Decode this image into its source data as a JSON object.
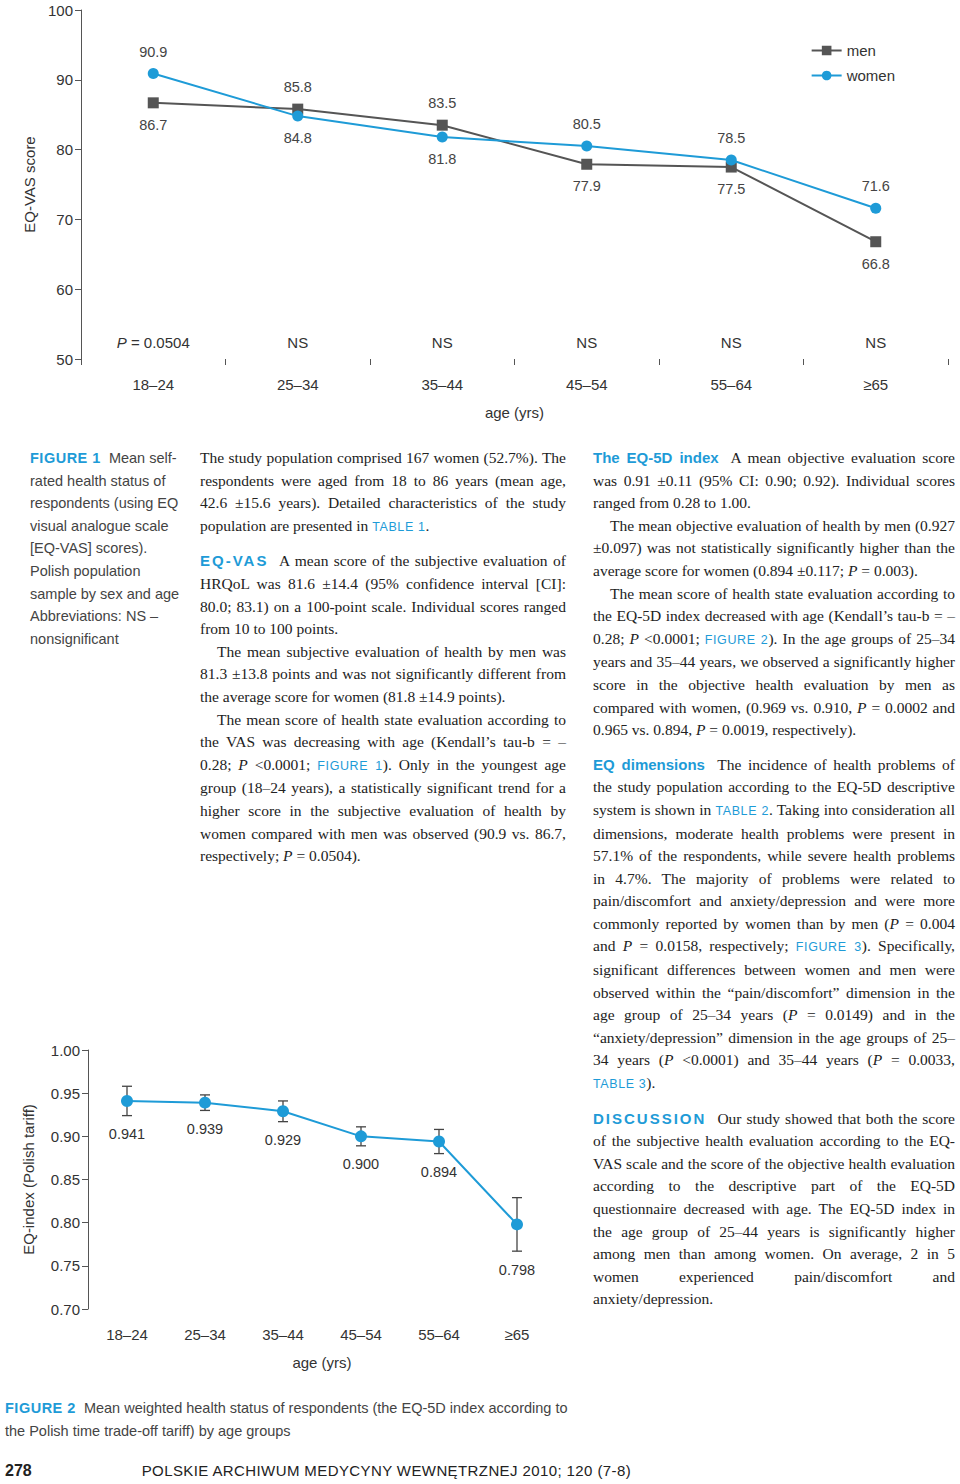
{
  "chart_data": [
    {
      "type": "line",
      "x_label": "age (yrs)",
      "y_label": "EQ-VAS score",
      "categories": [
        "18–24",
        "25–34",
        "35–44",
        "45–54",
        "55–64",
        "≥65"
      ],
      "series": [
        {
          "name": "men",
          "color": "#555555",
          "marker": "square",
          "values": [
            86.7,
            85.8,
            83.5,
            77.9,
            77.5,
            66.8
          ]
        },
        {
          "name": "women",
          "color": "#1e9bd7",
          "marker": "circle",
          "values": [
            90.9,
            84.8,
            81.8,
            80.5,
            78.5,
            71.6
          ]
        }
      ],
      "ylim": [
        50,
        100
      ],
      "yticks": [
        50,
        60,
        70,
        80,
        90,
        100
      ],
      "grid": false,
      "legend": "upper right",
      "data_labels": true,
      "annotations": [
        "P = 0.0504",
        "NS",
        "NS",
        "NS",
        "NS",
        "NS"
      ]
    },
    {
      "type": "line",
      "x_label": "age (yrs)",
      "y_label": "EQ-index (Polish tariff)",
      "categories": [
        "18–24",
        "25–34",
        "35–44",
        "45–54",
        "55–64",
        "≥65"
      ],
      "values": [
        0.941,
        0.939,
        0.929,
        0.9,
        0.894,
        0.798
      ],
      "value_labels": [
        "0.941",
        "0.939",
        "0.929",
        "0.900",
        "0.894",
        "0.798"
      ],
      "errors": [
        0.017,
        0.009,
        0.012,
        0.011,
        0.014,
        0.031
      ],
      "color": "#1e9bd7",
      "marker": "circle",
      "ylim": [
        0.7,
        1.0
      ],
      "yticks": [
        {
          "value": 0.7,
          "label": "0.70"
        },
        {
          "value": 0.75,
          "label": "0.75"
        },
        {
          "value": 0.8,
          "label": "0.80"
        },
        {
          "value": 0.85,
          "label": "0.85"
        },
        {
          "value": 0.9,
          "label": "0.90"
        },
        {
          "value": 0.95,
          "label": "0.95"
        },
        {
          "value": 1.0,
          "label": "1.00"
        }
      ],
      "grid": false,
      "data_labels": true
    }
  ],
  "captions": [
    {
      "label": "FIGURE 1",
      "text": "Mean self-rated health status of respondents (using EQ visual analogue scale [EQ-VAS] scores). Polish population sample by sex and age",
      "note": "Abbreviations: NS – nonsignificant"
    },
    {
      "label": "FIGURE 2",
      "text": "Mean weighted health status of respondents (the EQ-5D index according to the Polish time trade-off tariff) by age groups"
    }
  ],
  "columns": [
    [
      {
        "text": "The study population comprised 167 women (52.7%). The respondents were aged from 18 to 86 years (mean age, 42.6 ±15.6 years). Detailed characteristics of the study population are presented in TABLE 1."
      },
      {
        "heading": "EQ-VAS",
        "text": "A mean score of the subjective evaluation of HRQoL was 81.6 ±14.4 (95% confidence interval [CI]: 80.0; 83.1) on a 100-point scale. Individual scores ranged from 10 to 100 points."
      },
      {
        "text": "The mean subjective evaluation of health by men was 81.3 ±13.8 points and was not significantly different from the average score for women (81.8 ±14.9 points)."
      },
      {
        "text": "The mean score of health state evaluation according to the VAS was decreasing with age (Kendall’s tau-b = –0.28; P <0.0001; FIGURE 1). Only in the youngest age group (18–24 years), a statistically significant trend for a higher score in the subjective evaluation of health by women compared with men was observed (90.9 vs. 86.7, respectively; P = 0.0504)."
      }
    ],
    [
      {
        "heading": "The EQ-5D index",
        "text": "A mean objective evaluation score was 0.91 ±0.11 (95% CI: 0.90; 0.92). Individual scores ranged from 0.28 to 1.00."
      },
      {
        "text": "The mean objective evaluation of health by men (0.927 ±0.097) was not statistically significantly higher than the average score for women (0.894 ±0.117; P = 0.003)."
      },
      {
        "text": "The mean score of health state evaluation according to the EQ-5D index decreased with age (Kendall’s tau-b = –0.28; P <0.0001; FIGURE 2). In the age groups of 25–34 years and 35–44 years, we observed a significantly higher score in the objective health evaluation by men as compared with women, (0.969 vs. 0.910, P = 0.0002 and 0.965 vs. 0.894, P = 0.0019, respectively)."
      },
      {
        "heading": "EQ dimensions",
        "text": "The incidence of health problems of the study population according to the EQ-5D descriptive system is shown in TABLE 2. Taking into consideration all dimensions, moderate health problems were present in 57.1% of the respondents, while severe health problems in 4.7%. The majority of problems were related to pain/discomfort and anxiety/depression and were more commonly reported by women than by men (P = 0.004 and P = 0.0158, respectively; FIGURE 3). Specifically, significant differences between women and men were observed within the “pain/discomfort” dimension in the age group of 25–34 years (P = 0.0149) and in the “anxiety/depression” dimension in the age groups of 25–34 years (P <0.0001) and 35–44 years (P = 0.0033, TABLE 3)."
      },
      {
        "heading": "DISCUSSION",
        "text": "Our study showed that both the score of the subjective health evaluation according to the EQ-VAS scale and the score of the objective health evaluation according to the descriptive part of the EQ-5D questionnaire decreased with age. The EQ-5D index in the age group of 25–44 years is significantly higher among men than among women. On average, 2 in 5 women experienced pain/discomfort and anxiety/depression."
      }
    ]
  ],
  "footer": {
    "page": "278",
    "journal": "POLSKIE ARCHIWUM MEDYCYNY WEWNĘTRZNEJ 2010; 120 (7-8)"
  }
}
